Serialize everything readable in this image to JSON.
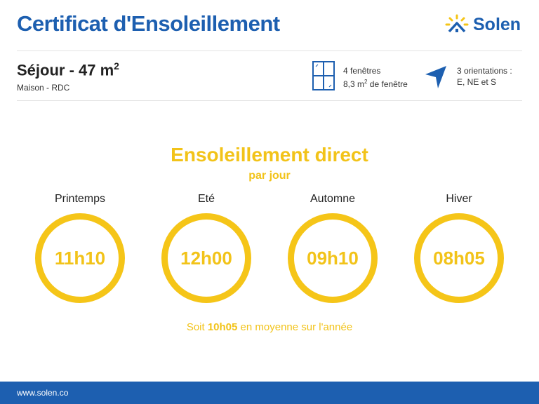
{
  "header": {
    "title": "Certificat d'Ensoleillement",
    "brand": "Solen"
  },
  "room": {
    "name": "Séjour - 47 m",
    "exponent": "2",
    "subtitle": "Maison - RDC"
  },
  "windows": {
    "count_label": "4 fenêtres",
    "area_prefix": "8,3 m",
    "area_exp": "2",
    "area_suffix": " de fenêtre"
  },
  "orientations": {
    "line1": "3 orientations :",
    "line2": "E, NE et S"
  },
  "main": {
    "title": "Ensoleillement direct",
    "subtitle": "par jour",
    "seasons": [
      {
        "name": "Printemps",
        "hours": "11h10"
      },
      {
        "name": "Eté",
        "hours": "12h00"
      },
      {
        "name": "Automne",
        "hours": "09h10"
      },
      {
        "name": "Hiver",
        "hours": "08h05"
      }
    ],
    "average_prefix": "Soit ",
    "average_value": "10h05",
    "average_suffix": " en moyenne sur l'année"
  },
  "footer": {
    "url": "www.solen.co"
  },
  "colors": {
    "blue": "#1d5fb0",
    "yellow": "#f5c518"
  }
}
